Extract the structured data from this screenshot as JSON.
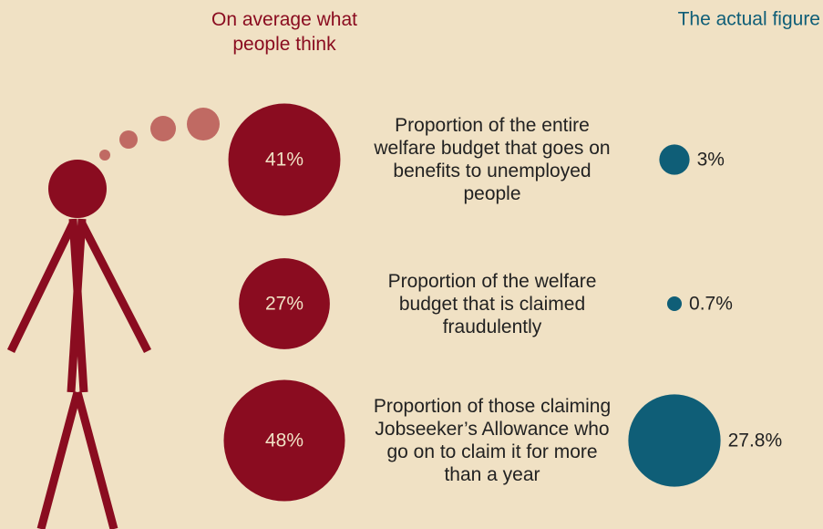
{
  "chart_data": {
    "type": "bubble",
    "categories": [
      "Proportion of the entire welfare budget that goes on benefits to unemployed people",
      "Proportion of the welfare budget that is claimed fraudulently",
      "Proportion of those claiming Jobseeker’s Allowance who go on to claim it for more than a year"
    ],
    "series": [
      {
        "name": "On average what people think",
        "color": "#8a0c20",
        "values": [
          41,
          27,
          48
        ],
        "value_labels": [
          "41%",
          "27%",
          "48%"
        ]
      },
      {
        "name": "The actual figure",
        "color": "#0f5e77",
        "values": [
          3,
          0.7,
          27.8
        ],
        "value_labels": [
          "3%",
          "0.7%",
          "27.8%"
        ]
      }
    ]
  }
}
